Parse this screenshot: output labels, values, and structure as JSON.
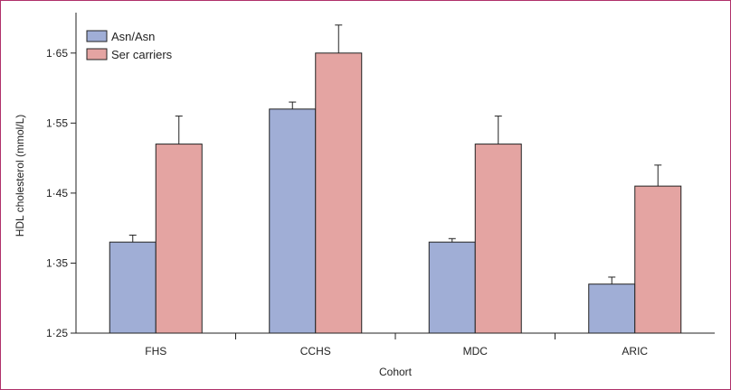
{
  "chart_data": {
    "type": "bar",
    "xlabel": "Cohort",
    "ylabel": "HDL cholesterol (mmol/L)",
    "ylim": [
      1.25,
      1.7
    ],
    "yticks": [
      1.25,
      1.35,
      1.45,
      1.55,
      1.65
    ],
    "ytick_labels": [
      "1·25",
      "1·35",
      "1·45",
      "1·55",
      "1·65"
    ],
    "categories": [
      "FHS",
      "CCHS",
      "MDC",
      "ARIC"
    ],
    "series": [
      {
        "name": "Asn/Asn",
        "color": "#a0aed6",
        "values": [
          1.38,
          1.57,
          1.38,
          1.32
        ],
        "errors": [
          0.01,
          0.01,
          0.005,
          0.01
        ]
      },
      {
        "name": "Ser carriers",
        "color": "#e4a4a2",
        "values": [
          1.52,
          1.65,
          1.52,
          1.46
        ],
        "errors": [
          0.04,
          0.04,
          0.04,
          0.03
        ]
      }
    ],
    "legend_position": "top-left",
    "grid": false
  }
}
